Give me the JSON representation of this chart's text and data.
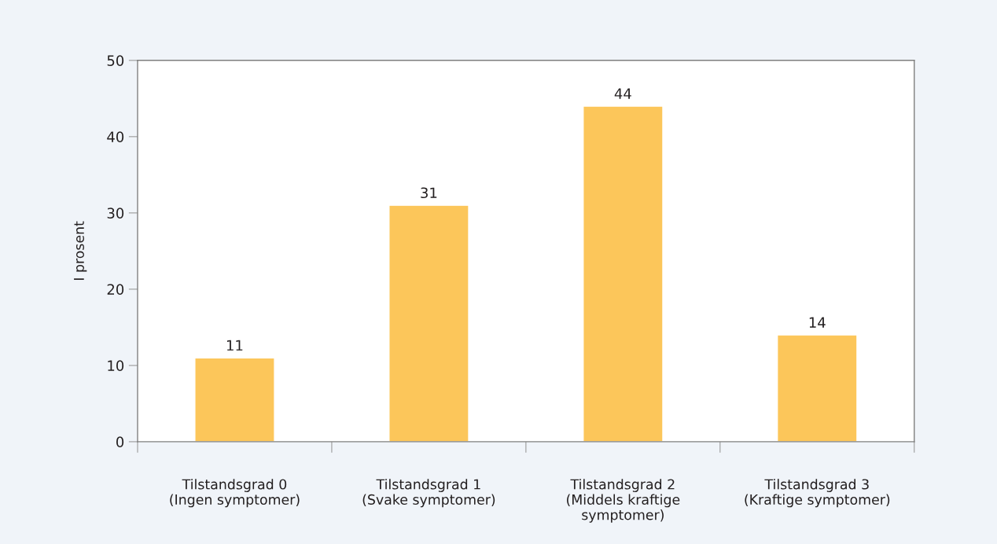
{
  "chart_data": {
    "type": "bar",
    "categories": [
      "Tilstandsgrad 0\n(Ingen symptomer)",
      "Tilstandsgrad 1\n(Svake symptomer)",
      "Tilstandsgrad 2\n(Middels kraftige\nsymptomer)",
      "Tilstandsgrad 3\n(Kraftige symptomer)"
    ],
    "values": [
      11,
      31,
      44,
      14
    ],
    "color": "#fcc65a",
    "ylabel": "I prosent",
    "ylim": [
      0,
      50
    ],
    "yticks": [
      0,
      10,
      20,
      30,
      40,
      50
    ],
    "data_labels": true
  }
}
